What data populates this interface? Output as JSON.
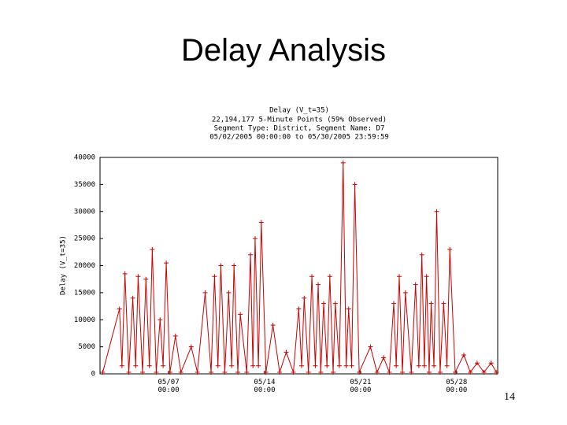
{
  "title": "Delay Analysis",
  "page_number": "14",
  "chart_data": {
    "type": "line",
    "title": "Delay (V_t=35)",
    "subtitle": [
      "22,194,177 5-Minute Points (59% Observed)",
      "Segment Type: District, Segment Name: D7",
      "05/02/2005 00:00:00 to 05/30/2005 23:59:59"
    ],
    "y_label": "Delay (V_t=35)",
    "xlim": [
      0,
      29
    ],
    "xticks": [
      {
        "value": 5,
        "label": "05/07\n00:00"
      },
      {
        "value": 12,
        "label": "05/14\n00:00"
      },
      {
        "value": 19,
        "label": "05/21\n00:00"
      },
      {
        "value": 26,
        "label": "05/28\n00:00"
      }
    ],
    "ylim": [
      0,
      40000
    ],
    "yticks": [
      0,
      5000,
      10000,
      15000,
      20000,
      25000,
      30000,
      35000,
      40000
    ],
    "grid": false,
    "series": [
      {
        "name": "Delay",
        "color": "#cc0000",
        "x": [
          0.2,
          1.42,
          1.6,
          1.82,
          2.1,
          2.39,
          2.6,
          2.78,
          3.1,
          3.35,
          3.6,
          3.81,
          4.1,
          4.38,
          4.6,
          4.83,
          5.1,
          5.5,
          5.9,
          6.65,
          7.1,
          7.67,
          8.1,
          8.35,
          8.6,
          8.81,
          9.1,
          9.38,
          9.6,
          9.77,
          10.05,
          10.23,
          10.7,
          10.97,
          11.15,
          11.31,
          11.55,
          11.76,
          12.1,
          12.61,
          13.1,
          13.58,
          14.1,
          14.49,
          14.7,
          14.89,
          15.2,
          15.45,
          15.7,
          15.91,
          16.1,
          16.31,
          16.55,
          16.76,
          17.0,
          17.16,
          17.45,
          17.73,
          17.95,
          18.13,
          18.35,
          18.58,
          18.9,
          19.72,
          20.2,
          20.68,
          21.1,
          21.42,
          21.6,
          21.82,
          22.05,
          22.27,
          22.7,
          23.01,
          23.25,
          23.47,
          23.65,
          23.81,
          24.0,
          24.15,
          24.35,
          24.55,
          24.8,
          25.06,
          25.3,
          25.51,
          25.9,
          26.53,
          27.0,
          27.5,
          28.0,
          28.52,
          28.9
        ],
        "values": [
          300,
          12000,
          1500,
          18500,
          300,
          14000,
          1500,
          18000,
          300,
          17500,
          1500,
          23000,
          300,
          10000,
          1500,
          20500,
          300,
          7000,
          300,
          5000,
          300,
          15000,
          300,
          18000,
          1500,
          20000,
          300,
          15000,
          1500,
          20000,
          300,
          11000,
          300,
          22000,
          1500,
          25000,
          1500,
          28000,
          300,
          9000,
          300,
          4000,
          300,
          12000,
          1500,
          14000,
          300,
          18000,
          1500,
          16500,
          300,
          13000,
          1500,
          18000,
          300,
          13000,
          1500,
          39000,
          1500,
          12000,
          1500,
          35000,
          300,
          5000,
          300,
          3000,
          300,
          13000,
          1500,
          18000,
          300,
          15000,
          300,
          16500,
          1500,
          22000,
          1500,
          18000,
          300,
          13000,
          1500,
          30000,
          300,
          13000,
          1500,
          23000,
          300,
          3500,
          300,
          2000,
          300,
          2000,
          300
        ]
      }
    ]
  }
}
